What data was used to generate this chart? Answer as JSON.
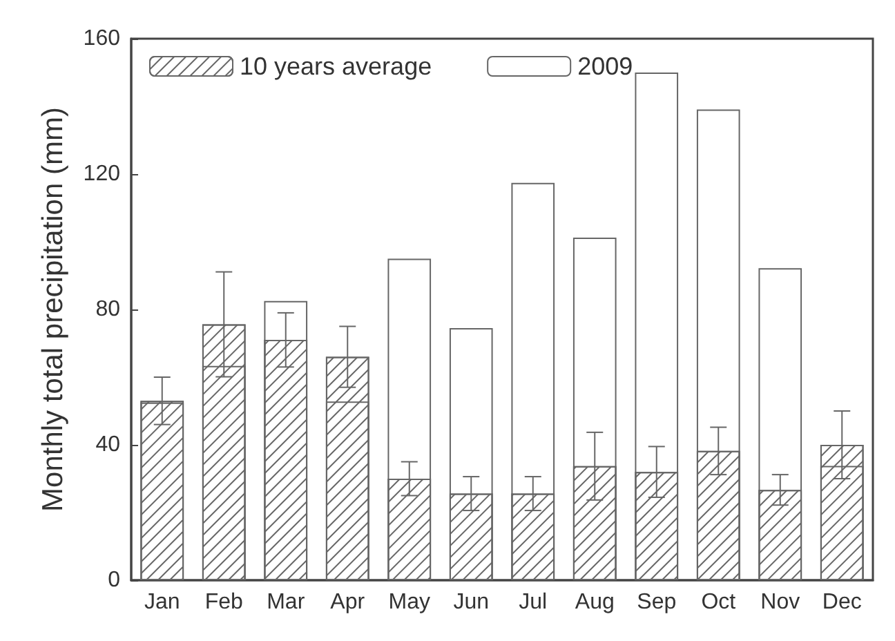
{
  "chart_data": {
    "type": "bar",
    "ylabel": "Monthly total precipitation (mm)",
    "categories": [
      "Jan",
      "Feb",
      "Mar",
      "Apr",
      "May",
      "Jun",
      "Jul",
      "Aug",
      "Sep",
      "Oct",
      "Nov",
      "Dec"
    ],
    "series": [
      {
        "name": "10 years average",
        "color": "#666666",
        "values": [
          53,
          75.6,
          71,
          66,
          30,
          25.6,
          25.6,
          33.7,
          32,
          38.2,
          26.7,
          40
        ],
        "errors": [
          7,
          15.5,
          8,
          9,
          5,
          5,
          5,
          10,
          7.5,
          7,
          4.5,
          10
        ]
      },
      {
        "name": "2009",
        "color": "#666666",
        "values": [
          52.5,
          63.3,
          82.5,
          52.8,
          95,
          74.5,
          117.4,
          101.2,
          150,
          139.1,
          92.2,
          33.8
        ]
      }
    ],
    "ylim": [
      0,
      160
    ],
    "yticks": [
      0,
      40,
      80,
      120,
      160
    ],
    "legend": "top left",
    "grid": false
  }
}
